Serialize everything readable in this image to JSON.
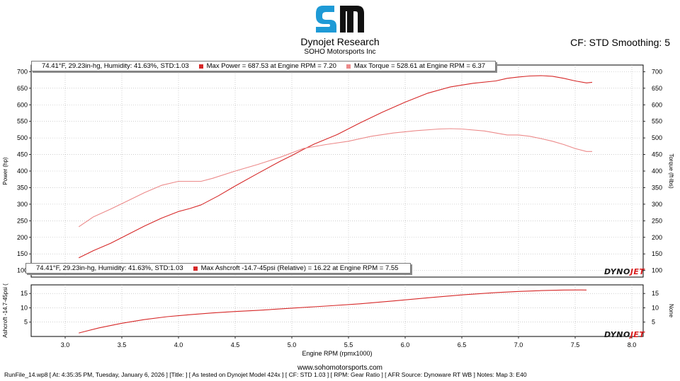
{
  "header": {
    "company": "Dynojet Research",
    "subcompany": "SOHO Motorsports Inc",
    "cf_smoothing": "CF: STD Smoothing: 5"
  },
  "legend_top": {
    "conditions": "74.41°F, 29.23in-hg, Humidity: 41.63%, STD:1.03",
    "power_label": "Max Power = 687.53 at Engine RPM = 7.20",
    "torque_label": "Max Torque = 528.61 at Engine RPM = 6.37"
  },
  "legend_bottom": {
    "conditions": "74.41°F, 29.23in-hg, Humidity: 41.63%, STD:1.03",
    "boost_label": "Max Ashcroft -14.7-45psi (Relative) = 16.22 at Engine RPM = 7.55"
  },
  "brand": {
    "dyno": "DYNO",
    "jet": "JET"
  },
  "website": "www.sohomotorsports.com",
  "footer": "RunFile_14.wp8 [ At: 4:35:35 PM, Tuesday, January 6, 2026 ] [Title: ] [ As tested on Dynojet Model 424x ] [ CF: STD 1.03 ] [ RPM: Gear Ratio ] [ AFR Source: Dynoware RT WB ] Notes: Map 3: E40",
  "colors": {
    "power": "#d62828",
    "torque": "#ec8a8a",
    "boost": "#d62828",
    "grid": "#b0b0b0"
  },
  "chart_data": [
    {
      "type": "line",
      "title": "",
      "xlabel": "",
      "ylabel": "Power (hp)",
      "y2label": "Torque (ft-lbs)",
      "xlim": [
        2.7,
        8.1
      ],
      "ylim": [
        80,
        720
      ],
      "yticks": [
        100,
        150,
        200,
        250,
        300,
        350,
        400,
        450,
        500,
        550,
        600,
        650,
        700
      ],
      "grid": true,
      "series": [
        {
          "name": "Power",
          "x": [
            3.12,
            3.25,
            3.4,
            3.55,
            3.7,
            3.85,
            4.0,
            4.1,
            4.2,
            4.35,
            4.5,
            4.7,
            4.9,
            5.0,
            5.1,
            5.2,
            5.4,
            5.6,
            5.8,
            6.0,
            6.2,
            6.4,
            6.6,
            6.8,
            6.9,
            7.0,
            7.1,
            7.2,
            7.3,
            7.4,
            7.5,
            7.6,
            7.65
          ],
          "y": [
            138,
            160,
            182,
            208,
            234,
            258,
            278,
            287,
            298,
            325,
            355,
            393,
            430,
            447,
            465,
            482,
            510,
            545,
            578,
            608,
            635,
            654,
            665,
            672,
            680,
            684,
            687,
            688,
            686,
            680,
            672,
            666,
            668
          ]
        },
        {
          "name": "Torque",
          "x": [
            3.12,
            3.25,
            3.4,
            3.55,
            3.7,
            3.85,
            4.0,
            4.1,
            4.2,
            4.3,
            4.5,
            4.7,
            4.9,
            5.1,
            5.3,
            5.5,
            5.7,
            5.9,
            6.1,
            6.3,
            6.4,
            6.5,
            6.7,
            6.9,
            7.0,
            7.1,
            7.2,
            7.3,
            7.4,
            7.5,
            7.6,
            7.65
          ],
          "y": [
            232,
            262,
            285,
            310,
            335,
            357,
            369,
            369,
            369,
            378,
            400,
            420,
            442,
            468,
            480,
            490,
            505,
            515,
            522,
            527,
            528,
            527,
            521,
            509,
            509,
            505,
            498,
            490,
            480,
            468,
            459,
            459
          ]
        }
      ]
    },
    {
      "type": "line",
      "title": "",
      "xlabel": "Engine RPM (rpmx1000)",
      "ylabel": "Ashcroft -14.7-45psi (",
      "y2label": "None",
      "xlim": [
        2.7,
        8.1
      ],
      "xticks": [
        3.0,
        3.5,
        4.0,
        4.5,
        5.0,
        5.5,
        6.0,
        6.5,
        7.0,
        7.5,
        8.0
      ],
      "ylim": [
        0,
        18
      ],
      "yticks": [
        5,
        10,
        15
      ],
      "grid": true,
      "series": [
        {
          "name": "Max Ashcroft -14.7-45psi (Relative)",
          "x": [
            3.12,
            3.3,
            3.5,
            3.7,
            3.9,
            4.1,
            4.3,
            4.5,
            4.7,
            5.0,
            5.3,
            5.6,
            5.9,
            6.2,
            6.5,
            6.8,
            7.0,
            7.2,
            7.4,
            7.55,
            7.6
          ],
          "y": [
            1.2,
            3.0,
            4.6,
            5.9,
            6.9,
            7.6,
            8.2,
            8.7,
            9.1,
            9.9,
            10.6,
            11.4,
            12.4,
            13.5,
            14.5,
            15.3,
            15.7,
            16.0,
            16.2,
            16.22,
            16.2
          ]
        }
      ]
    }
  ]
}
